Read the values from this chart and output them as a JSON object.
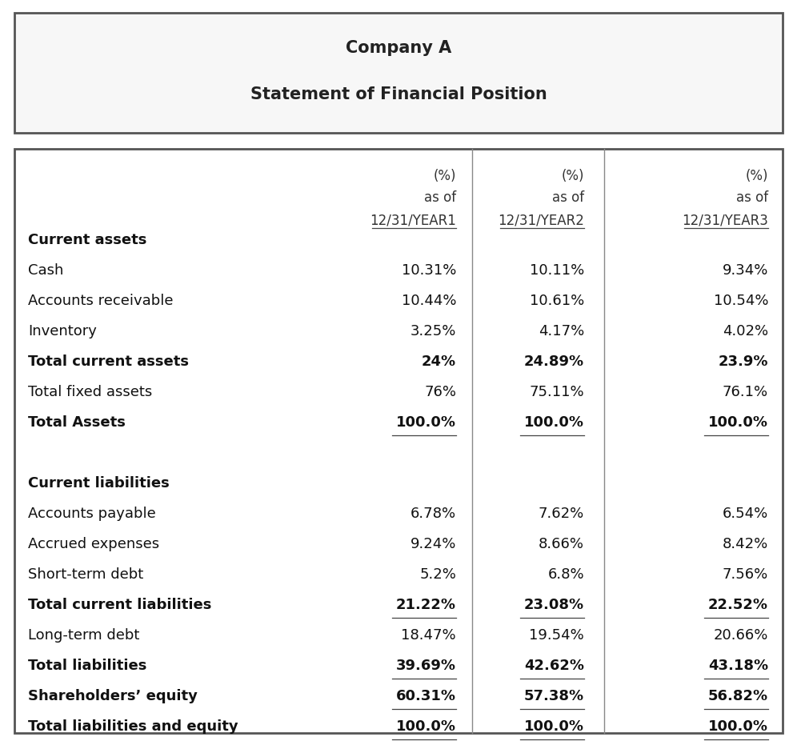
{
  "title_line1": "Company A",
  "title_line2": "Statement of Financial Position",
  "col_headers": [
    [
      "(%)",
      "as of",
      "12/31/YEAR1"
    ],
    [
      "(%)",
      "as of",
      "12/31/YEAR2"
    ],
    [
      "(%)",
      "as of",
      "12/31/YEAR3"
    ]
  ],
  "rows": [
    {
      "label": "Current assets",
      "values": [
        "",
        "",
        ""
      ],
      "bold": true,
      "underline": false,
      "spacer": false
    },
    {
      "label": "Cash",
      "values": [
        "10.31%",
        "10.11%",
        "9.34%"
      ],
      "bold": false,
      "underline": false,
      "spacer": false
    },
    {
      "label": "Accounts receivable",
      "values": [
        "10.44%",
        "10.61%",
        "10.54%"
      ],
      "bold": false,
      "underline": false,
      "spacer": false
    },
    {
      "label": "Inventory",
      "values": [
        "3.25%",
        "4.17%",
        "4.02%"
      ],
      "bold": false,
      "underline": false,
      "spacer": false
    },
    {
      "label": "Total current assets",
      "values": [
        "24%",
        "24.89%",
        "23.9%"
      ],
      "bold": true,
      "underline": false,
      "spacer": false
    },
    {
      "label": "Total fixed assets",
      "values": [
        "76%",
        "75.11%",
        "76.1%"
      ],
      "bold": false,
      "underline": false,
      "spacer": false
    },
    {
      "label": "Total Assets",
      "values": [
        "100.0%",
        "100.0%",
        "100.0%"
      ],
      "bold": true,
      "underline": true,
      "spacer": false
    },
    {
      "label": "",
      "values": [
        "",
        "",
        ""
      ],
      "bold": false,
      "underline": false,
      "spacer": true
    },
    {
      "label": "Current liabilities",
      "values": [
        "",
        "",
        ""
      ],
      "bold": true,
      "underline": false,
      "spacer": false
    },
    {
      "label": "Accounts payable",
      "values": [
        "6.78%",
        "7.62%",
        "6.54%"
      ],
      "bold": false,
      "underline": false,
      "spacer": false
    },
    {
      "label": "Accrued expenses",
      "values": [
        "9.24%",
        "8.66%",
        "8.42%"
      ],
      "bold": false,
      "underline": false,
      "spacer": false
    },
    {
      "label": "Short-term debt",
      "values": [
        "5.2%",
        "6.8%",
        "7.56%"
      ],
      "bold": false,
      "underline": false,
      "spacer": false
    },
    {
      "label": "Total current liabilities",
      "values": [
        "21.22%",
        "23.08%",
        "22.52%"
      ],
      "bold": true,
      "underline": true,
      "spacer": false
    },
    {
      "label": "Long-term debt",
      "values": [
        "18.47%",
        "19.54%",
        "20.66%"
      ],
      "bold": false,
      "underline": false,
      "spacer": false
    },
    {
      "label": "Total liabilities",
      "values": [
        "39.69%",
        "42.62%",
        "43.18%"
      ],
      "bold": true,
      "underline": true,
      "spacer": false
    },
    {
      "label": "Shareholders’ equity",
      "values": [
        "60.31%",
        "57.38%",
        "56.82%"
      ],
      "bold": true,
      "underline": true,
      "spacer": false
    },
    {
      "label": "Total liabilities and equity",
      "values": [
        "100.0%",
        "100.0%",
        "100.0%"
      ],
      "bold": true,
      "underline": true,
      "spacer": false
    }
  ],
  "bg_color": "#ffffff",
  "box_edge_color": "#555555",
  "font_family": "DejaVu Sans",
  "font_size_body": 13,
  "font_size_title": 15
}
